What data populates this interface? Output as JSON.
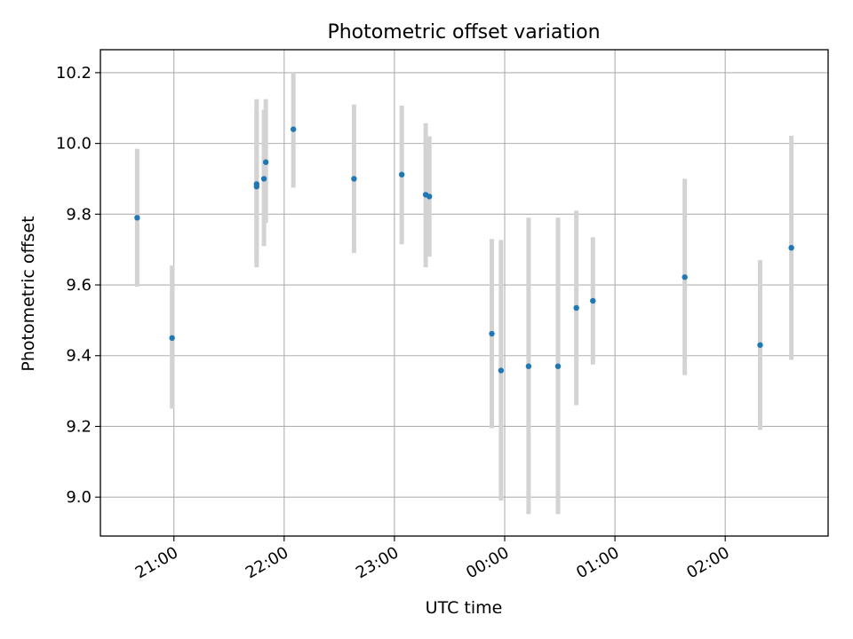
{
  "chart_data": {
    "type": "scatter",
    "title": "Photometric offset variation",
    "xlabel": "UTC time",
    "ylabel": "Photometric offset",
    "x_axis": {
      "kind": "time",
      "range": [
        "20:20",
        "26:56"
      ],
      "ticks": [
        {
          "value": "21:00",
          "label": "21:00"
        },
        {
          "value": "22:00",
          "label": "22:00"
        },
        {
          "value": "23:00",
          "label": "23:00"
        },
        {
          "value": "24:00",
          "label": "00:00"
        },
        {
          "value": "25:00",
          "label": "01:00"
        },
        {
          "value": "26:00",
          "label": "02:00"
        }
      ]
    },
    "y_axis": {
      "range": [
        8.89,
        10.265
      ],
      "ticks": [
        9.0,
        9.2,
        9.4,
        9.6,
        9.8,
        10.0,
        10.2
      ]
    },
    "grid": true,
    "marker_color": "#1f77b4",
    "errorbar_color": "#d3d3d3",
    "points": [
      {
        "t": "20:40",
        "y": 9.79,
        "ylow": 9.595,
        "yhigh": 9.985
      },
      {
        "t": "20:59",
        "y": 9.45,
        "ylow": 9.25,
        "yhigh": 9.655
      },
      {
        "t": "21:45",
        "y": 9.885,
        "ylow": 9.65,
        "yhigh": 10.125
      },
      {
        "t": "21:45",
        "y": 9.878,
        "ylow": 9.665,
        "yhigh": 10.09
      },
      {
        "t": "21:49",
        "y": 9.9,
        "ylow": 9.71,
        "yhigh": 10.095
      },
      {
        "t": "21:50",
        "y": 9.947,
        "ylow": 9.775,
        "yhigh": 10.125
      },
      {
        "t": "22:05",
        "y": 10.04,
        "ylow": 9.875,
        "yhigh": 10.2
      },
      {
        "t": "22:38",
        "y": 9.9,
        "ylow": 9.69,
        "yhigh": 10.11
      },
      {
        "t": "23:04",
        "y": 9.912,
        "ylow": 9.715,
        "yhigh": 10.107
      },
      {
        "t": "23:17",
        "y": 9.855,
        "ylow": 9.65,
        "yhigh": 10.057
      },
      {
        "t": "23:19",
        "y": 9.85,
        "ylow": 9.68,
        "yhigh": 10.02
      },
      {
        "t": "23:53",
        "y": 9.462,
        "ylow": 9.195,
        "yhigh": 9.73
      },
      {
        "t": "23:58",
        "y": 9.358,
        "ylow": 8.99,
        "yhigh": 9.727
      },
      {
        "t": "24:13",
        "y": 9.37,
        "ylow": 8.952,
        "yhigh": 9.79
      },
      {
        "t": "24:29",
        "y": 9.37,
        "ylow": 8.952,
        "yhigh": 9.79
      },
      {
        "t": "24:39",
        "y": 9.535,
        "ylow": 9.26,
        "yhigh": 9.81
      },
      {
        "t": "24:48",
        "y": 9.555,
        "ylow": 9.375,
        "yhigh": 9.735
      },
      {
        "t": "25:38",
        "y": 9.622,
        "ylow": 9.345,
        "yhigh": 9.9
      },
      {
        "t": "26:19",
        "y": 9.43,
        "ylow": 9.19,
        "yhigh": 9.67
      },
      {
        "t": "26:36",
        "y": 9.705,
        "ylow": 9.388,
        "yhigh": 10.022
      }
    ]
  }
}
